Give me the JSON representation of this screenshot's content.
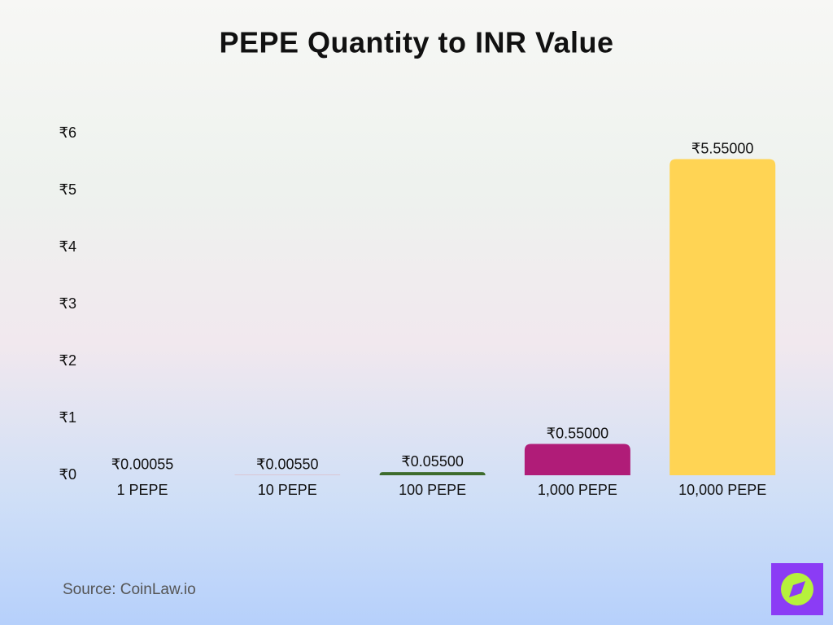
{
  "chart_data": {
    "type": "bar",
    "title": "PEPE Quantity to INR Value",
    "categories": [
      "1 PEPE",
      "10 PEPE",
      "100 PEPE",
      "1,000 PEPE",
      "10,000 PEPE"
    ],
    "values": [
      0.00055,
      0.0055,
      0.055,
      0.55,
      5.55
    ],
    "value_labels": [
      "₹0.00055",
      "₹0.00550",
      "₹0.05500",
      "₹0.55000",
      "₹5.55000"
    ],
    "colors": [
      "#4a7fc1",
      "#e39a9a",
      "#3d6b2c",
      "#b01c78",
      "#ffd454"
    ],
    "ylim": [
      0,
      6
    ],
    "yticks": [
      {
        "value": 0,
        "label": "₹0"
      },
      {
        "value": 1,
        "label": "₹1"
      },
      {
        "value": 2,
        "label": "₹2"
      },
      {
        "value": 3,
        "label": "₹3"
      },
      {
        "value": 4,
        "label": "₹4"
      },
      {
        "value": 5,
        "label": "₹5"
      },
      {
        "value": 6,
        "label": "₹6"
      }
    ],
    "grid": false,
    "source": "Source: CoinLaw.io"
  }
}
